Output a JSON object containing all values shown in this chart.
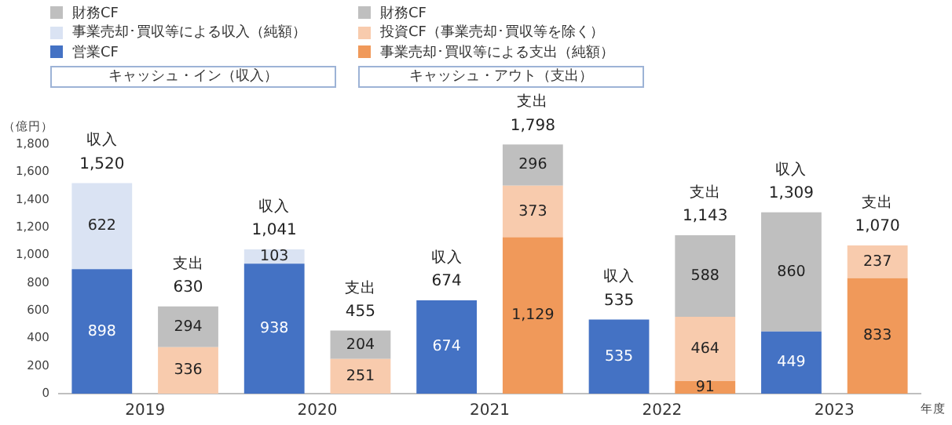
{
  "chart_data": {
    "type": "bar",
    "stacked": true,
    "xlabel": "年度",
    "ylabel": "（億円）",
    "categories": [
      "2019",
      null,
      "2020",
      null,
      "2021",
      null,
      "2022",
      null,
      "2023",
      null
    ],
    "ylim": [
      0,
      1800
    ],
    "yticks": [
      0,
      {
        "value": 200,
        "label": "200"
      },
      {
        "value": 400,
        "label": "400"
      },
      {
        "value": 600,
        "label": "600"
      },
      {
        "value": 800,
        "label": "800"
      },
      {
        "value": 1000,
        "label": "1,000"
      },
      {
        "value": 1200,
        "label": "1,200"
      },
      {
        "value": 1400,
        "label": "1,400"
      },
      {
        "value": 1600,
        "label": "1,600"
      },
      {
        "value": 1800,
        "label": "1,800"
      }
    ],
    "grid": false,
    "legend": "top left",
    "annotations": [
      "キャッシュ・イン（収入）",
      "キャッシュ・アウト（支出）",
      "収入",
      "支出"
    ],
    "totals": [
      "1,520",
      "630",
      "1,041",
      "455",
      "674",
      "1,798",
      "535",
      "1,143",
      "1,309",
      "1,070"
    ],
    "series": [
      {
        "name": "営業CF",
        "color": "#4472c4",
        "values": [
          898,
          null,
          938,
          null,
          674,
          null,
          535,
          null,
          449,
          null
        ],
        "value_labels": [
          "898",
          null,
          "938",
          null,
          "674",
          null,
          "535",
          null,
          "449",
          null
        ]
      },
      {
        "name": "事業売却･買収等による収入（純額）",
        "color": "#dae3f3",
        "values": [
          622,
          null,
          103,
          null,
          null,
          null,
          null,
          null,
          null,
          null
        ],
        "value_labels": [
          "622",
          null,
          "103",
          null,
          null,
          null,
          null,
          null,
          null,
          null
        ]
      },
      {
        "name": "財務CF",
        "color": "#bfbfbf",
        "values": [
          null,
          null,
          null,
          null,
          null,
          null,
          null,
          null,
          860,
          null
        ],
        "value_labels": [
          null,
          null,
          null,
          null,
          null,
          null,
          null,
          null,
          "860",
          null
        ]
      },
      {
        "name": "事業売却･買収等による支出（純額）",
        "color": "#f0995a",
        "values": [
          null,
          null,
          null,
          null,
          null,
          1129,
          null,
          91,
          null,
          833
        ],
        "value_labels": [
          null,
          null,
          null,
          null,
          null,
          "1,129",
          null,
          "91",
          null,
          "833"
        ]
      },
      {
        "name": "投資CF（事業売却･買収等を除く）",
        "color": "#f8cbad",
        "values": [
          null,
          336,
          null,
          251,
          null,
          373,
          null,
          464,
          null,
          237
        ],
        "value_labels": [
          null,
          "336",
          null,
          "251",
          null,
          "373",
          null,
          "464",
          null,
          "237"
        ]
      },
      {
        "name": "財務CF",
        "color": "#bfbfbf",
        "values": [
          null,
          294,
          null,
          204,
          null,
          296,
          null,
          588,
          null,
          null
        ],
        "value_labels": [
          null,
          "294",
          null,
          "204",
          null,
          "296",
          null,
          "588",
          null,
          null
        ]
      }
    ]
  }
}
